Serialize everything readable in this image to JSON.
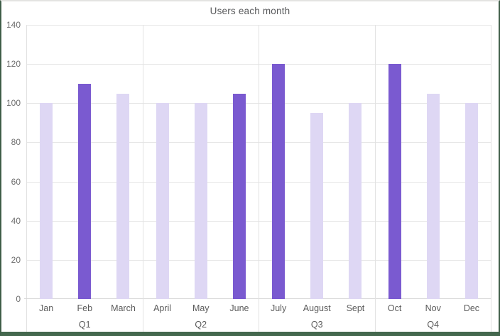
{
  "chart_data": {
    "type": "bar",
    "title": "Users each month",
    "categories": [
      "Jan",
      "Feb",
      "March",
      "April",
      "May",
      "June",
      "July",
      "August",
      "Sept",
      "Oct",
      "Nov",
      "Dec"
    ],
    "values": [
      100,
      110,
      105,
      100,
      100,
      105,
      120,
      95,
      100,
      120,
      105,
      100
    ],
    "highlighted": [
      false,
      true,
      false,
      false,
      false,
      true,
      true,
      false,
      false,
      true,
      false,
      false
    ],
    "groups": [
      {
        "label": "Q1",
        "months": [
          "Jan",
          "Feb",
          "March"
        ]
      },
      {
        "label": "Q2",
        "months": [
          "April",
          "May",
          "June"
        ]
      },
      {
        "label": "Q3",
        "months": [
          "July",
          "August",
          "Sept"
        ]
      },
      {
        "label": "Q4",
        "months": [
          "Oct",
          "Nov",
          "Dec"
        ]
      }
    ],
    "xlabel": "",
    "ylabel": "",
    "ylim": [
      0,
      140
    ],
    "ytick_interval": 20,
    "yticks": [
      0,
      20,
      40,
      60,
      80,
      100,
      120,
      140
    ],
    "grid": "horizontal gridlines every 20; vertical separator lines between quarter groups",
    "legend": "none"
  },
  "style": {
    "bar_color": "#DED7F4",
    "bar_highlight_color": "#7A5AD0",
    "grid_color": "#E6E6E6",
    "axis_line_color": "#D6D6D6",
    "separator_color": "#E2E2E2",
    "tick_text_color": "#6E6E6E",
    "label_text_color": "#5B5B5B",
    "title_color": "#58595B",
    "frame_side_color": "#3F5E48",
    "frame_bottom_color": "#44684E",
    "frame_top_color": "#E3E3E1",
    "background_color": "#FFFFFF"
  }
}
